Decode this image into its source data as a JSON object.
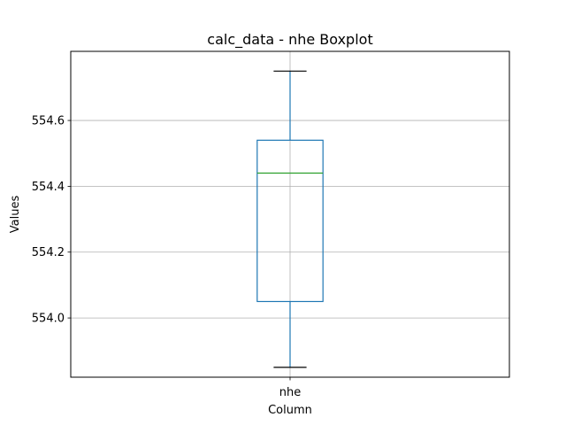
{
  "chart_data": {
    "type": "boxplot",
    "title": "calc_data - nhe Boxplot",
    "xlabel": "Column",
    "ylabel": "Values",
    "categories": [
      "nhe"
    ],
    "boxes": [
      {
        "category": "nhe",
        "whisker_low": 553.85,
        "q1": 554.05,
        "median": 554.44,
        "q3": 554.54,
        "whisker_high": 554.75
      }
    ],
    "ylim": [
      553.82,
      554.81
    ],
    "yticks": [
      554.0,
      554.2,
      554.4,
      554.6
    ],
    "ytick_labels": [
      "554.0",
      "554.2",
      "554.4",
      "554.6"
    ],
    "grid": true,
    "colors": {
      "box": "#1f77b4",
      "median": "#2ca02c",
      "caps": "#000000",
      "grid": "#b0b0b0"
    }
  }
}
